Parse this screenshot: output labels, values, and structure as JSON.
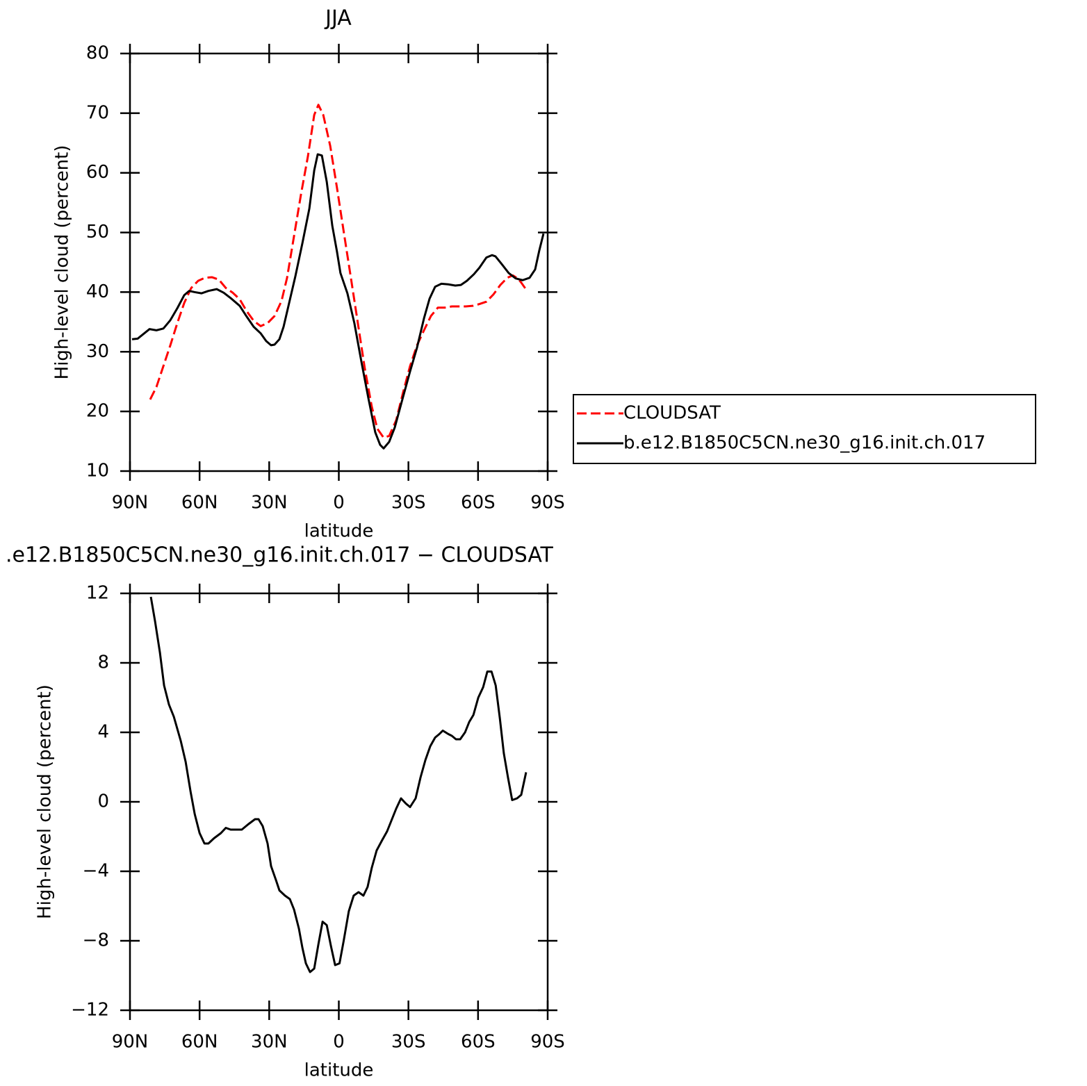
{
  "chart_data": [
    {
      "type": "line",
      "title": "JJA",
      "xlabel": "latitude",
      "ylabel": "High-level cloud (percent)",
      "xlim": [
        90,
        -90
      ],
      "xticks": [
        {
          "value": 90,
          "label": "90N"
        },
        {
          "value": 60,
          "label": "60N"
        },
        {
          "value": 30,
          "label": "30N"
        },
        0,
        {
          "value": -30,
          "label": "30S"
        },
        {
          "value": -60,
          "label": "60S"
        },
        {
          "value": -90,
          "label": "90S"
        }
      ],
      "ylim": [
        10,
        80
      ],
      "yticks": [
        10,
        20,
        30,
        40,
        50,
        60,
        70,
        80
      ],
      "legend": "right",
      "series": [
        {
          "name": "CLOUDSAT",
          "color": "#ff0000",
          "line_style": "dashed",
          "x": [
            81.3,
            78.6,
            75.6,
            72.6,
            69.6,
            66.6,
            63.6,
            60.6,
            57.7,
            54.7,
            51.7,
            48.7,
            45.7,
            42.7,
            39.7,
            36.7,
            33.7,
            30.7,
            27.7,
            24.7,
            22.3,
            19.3,
            16.3,
            13.3,
            10.6,
            8.8,
            6.7,
            3.7,
            0.8,
            -2.2,
            -5.2,
            -8.2,
            -11.2,
            -14.2,
            -16.6,
            -19.3,
            -21.7,
            -24.7,
            -27.7,
            -30.7,
            -33.7,
            -36.7,
            -39.7,
            -42.7,
            -45.7,
            -48.7,
            -51.7,
            -54.7,
            -57.7,
            -60.6,
            -63.6,
            -66.6,
            -69.6,
            -72.6,
            -75.0,
            -77.1,
            -78.6,
            -80.4
          ],
          "values": [
            22.0,
            24.1,
            27.6,
            31.1,
            34.8,
            38.2,
            40.7,
            41.9,
            42.4,
            42.5,
            42.1,
            40.7,
            39.9,
            38.8,
            36.8,
            35.2,
            34.3,
            34.8,
            36.0,
            38.5,
            42.4,
            49.4,
            56.4,
            62.8,
            69.7,
            71.4,
            69.7,
            64.5,
            57.5,
            49.9,
            42.4,
            34.8,
            27.2,
            20.8,
            17.1,
            15.6,
            15.9,
            18.5,
            23.2,
            27.6,
            31.1,
            33.6,
            36.0,
            37.4,
            37.4,
            37.6,
            37.6,
            37.6,
            37.7,
            38.0,
            38.4,
            39.6,
            41.2,
            42.4,
            42.8,
            42.3,
            41.6,
            40.6
          ]
        },
        {
          "name": "b.e12.B1850C5CN.ne30_g16.init.ch.017",
          "color": "#000000",
          "line_style": "solid",
          "x": [
            89.1,
            86.7,
            81.6,
            78.6,
            75.6,
            72.6,
            69.6,
            66.6,
            64.5,
            62.1,
            59.2,
            56.2,
            52.6,
            49.6,
            46.3,
            42.7,
            39.7,
            36.7,
            33.7,
            31.3,
            29.2,
            27.7,
            25.6,
            23.8,
            21.7,
            18.7,
            15.7,
            12.7,
            10.6,
            9.1,
            7.3,
            5.2,
            2.8,
            0.8,
            -0.7,
            -3.7,
            -6.7,
            -9.7,
            -12.7,
            -15.7,
            -17.8,
            -19.3,
            -21.7,
            -24.1,
            -27.1,
            -30.7,
            -33.7,
            -36.7,
            -39.1,
            -41.5,
            -44.2,
            -47.2,
            -50.2,
            -52.6,
            -55.2,
            -58.2,
            -60.6,
            -63.6,
            -66.0,
            -67.5,
            -70.2,
            -73.2,
            -76.2,
            -79.2,
            -82.2,
            -84.6,
            -86.4,
            -88.2
          ],
          "values": [
            32.1,
            32.2,
            33.8,
            33.6,
            33.9,
            35.3,
            37.3,
            39.5,
            40.2,
            40.0,
            39.8,
            40.2,
            40.5,
            39.9,
            38.9,
            37.7,
            35.9,
            34.2,
            33.1,
            31.8,
            31.1,
            31.2,
            32.1,
            34.2,
            37.7,
            42.7,
            48.2,
            54.0,
            60.4,
            63.1,
            62.9,
            58.5,
            51.1,
            46.8,
            43.2,
            39.8,
            34.8,
            28.4,
            22.3,
            16.5,
            14.4,
            13.8,
            14.9,
            17.3,
            21.6,
            26.7,
            30.7,
            35.6,
            38.9,
            40.9,
            41.4,
            41.3,
            41.1,
            41.2,
            41.9,
            43.0,
            44.1,
            45.8,
            46.2,
            46.0,
            44.7,
            43.2,
            42.3,
            42.0,
            42.4,
            43.8,
            47.0,
            49.8
          ]
        }
      ]
    },
    {
      "type": "line",
      "title": ".e12.B1850C5CN.ne30_g16.init.ch.017 − CLOUDSAT",
      "xlabel": "latitude",
      "ylabel": "High-level cloud (percent)",
      "xlim": [
        90,
        -90
      ],
      "xticks": [
        {
          "value": 90,
          "label": "90N"
        },
        {
          "value": 60,
          "label": "60N"
        },
        {
          "value": 30,
          "label": "30N"
        },
        0,
        {
          "value": -30,
          "label": "30S"
        },
        {
          "value": -60,
          "label": "60S"
        },
        {
          "value": -90,
          "label": "90S"
        }
      ],
      "ylim": [
        -12,
        12
      ],
      "yticks": [
        {
          "value": -12,
          "label": "−12"
        },
        {
          "value": -8,
          "label": "−8"
        },
        {
          "value": -4,
          "label": "−4"
        },
        0,
        4,
        8,
        12
      ],
      "series": [
        {
          "color": "#000000",
          "line_style": "solid",
          "x": [
            81.0,
            79.2,
            77.1,
            75.3,
            73.2,
            71.1,
            68.1,
            66.0,
            63.9,
            62.1,
            60.0,
            57.9,
            56.2,
            53.8,
            50.8,
            48.7,
            46.6,
            44.2,
            41.8,
            39.1,
            36.1,
            34.6,
            32.8,
            30.7,
            29.2,
            27.1,
            25.6,
            23.2,
            21.1,
            19.3,
            17.2,
            15.7,
            14.2,
            12.4,
            10.6,
            8.8,
            7.0,
            5.2,
            3.4,
            1.6,
            -0.3,
            -2.1,
            -4.3,
            -6.4,
            -8.5,
            -10.6,
            -12.4,
            -14.2,
            -16.3,
            -18.7,
            -20.8,
            -22.9,
            -24.7,
            -26.8,
            -28.9,
            -30.7,
            -33.1,
            -35.2,
            -37.3,
            -39.4,
            -41.5,
            -43.3,
            -44.8,
            -47.2,
            -48.7,
            -50.5,
            -52.3,
            -54.4,
            -56.2,
            -58.0,
            -60.1,
            -62.2,
            -64.0,
            -65.8,
            -67.6,
            -69.4,
            -71.1,
            -72.9,
            -74.7,
            -76.8,
            -78.6,
            -80.7
          ],
          "values": [
            11.8,
            10.4,
            8.6,
            6.7,
            5.6,
            4.9,
            3.5,
            2.3,
            0.6,
            -0.7,
            -1.8,
            -2.4,
            -2.4,
            -2.1,
            -1.8,
            -1.5,
            -1.6,
            -1.6,
            -1.6,
            -1.3,
            -1.0,
            -1.0,
            -1.4,
            -2.4,
            -3.7,
            -4.5,
            -5.1,
            -5.4,
            -5.6,
            -6.2,
            -7.3,
            -8.4,
            -9.3,
            -9.8,
            -9.6,
            -8.2,
            -6.9,
            -7.1,
            -8.3,
            -9.4,
            -9.3,
            -8.0,
            -6.3,
            -5.4,
            -5.2,
            -5.4,
            -4.9,
            -3.8,
            -2.8,
            -2.2,
            -1.7,
            -1.0,
            -0.4,
            0.2,
            -0.1,
            -0.3,
            0.2,
            1.4,
            2.4,
            3.2,
            3.7,
            3.9,
            4.1,
            3.9,
            3.8,
            3.6,
            3.6,
            4.0,
            4.6,
            5.0,
            6.0,
            6.6,
            7.5,
            7.5,
            6.7,
            4.8,
            2.8,
            1.4,
            0.1,
            0.2,
            0.4,
            1.7
          ]
        }
      ]
    }
  ]
}
